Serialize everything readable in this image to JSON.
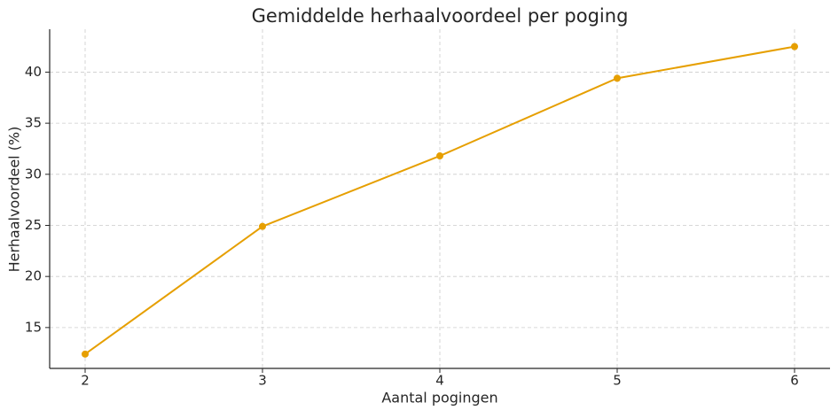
{
  "chart_data": {
    "type": "line",
    "title": "Gemiddelde herhaalvoordeel per poging",
    "x_label": "Aantal pogingen",
    "y_label": "Herhaalvoordeel (%)",
    "x": [
      2,
      3,
      4,
      5,
      6
    ],
    "series": [
      {
        "color": "#e69f00",
        "values": [
          12.4,
          24.9,
          31.8,
          39.4,
          42.5
        ]
      }
    ],
    "xlim": [
      1.8,
      6.2
    ],
    "ylim": [
      11.0,
      44.2
    ],
    "xticks": [
      2,
      3,
      4,
      5,
      6
    ],
    "yticks": [
      15,
      20,
      25,
      30,
      35,
      40
    ],
    "grid": true
  }
}
